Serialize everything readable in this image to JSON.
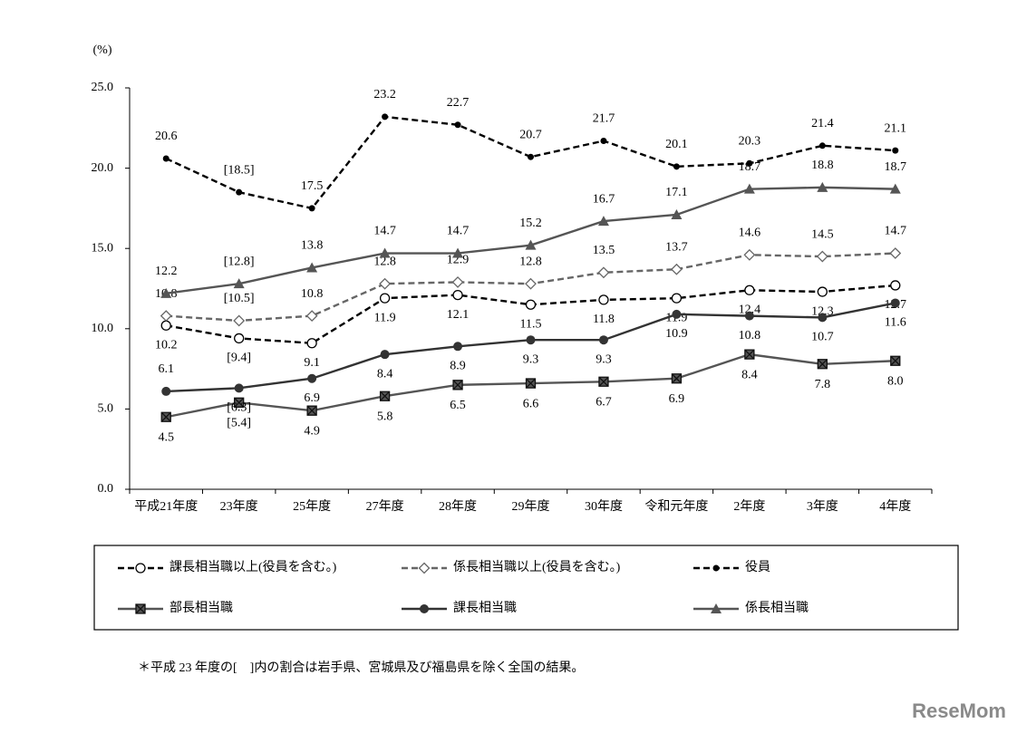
{
  "chart_data": {
    "type": "line",
    "unit_label": "(%)",
    "categories": [
      "平成21年度",
      "23年度",
      "25年度",
      "27年度",
      "28年度",
      "29年度",
      "30年度",
      "令和元年度",
      "2年度",
      "3年度",
      "4年度"
    ],
    "ylim": [
      0,
      25
    ],
    "yticks": [
      {
        "value": 0,
        "label": "0.0"
      },
      {
        "value": 5,
        "label": "5.0"
      },
      {
        "value": 10,
        "label": "10.0"
      },
      {
        "value": 15,
        "label": "15.0"
      },
      {
        "value": 20,
        "label": "20.0"
      },
      {
        "value": 25,
        "label": "25.0"
      }
    ],
    "series": [
      {
        "name": "課長相当職以上(役員を含む。)",
        "color": "#000000",
        "dashed": true,
        "marker": "open-circle",
        "values": [
          10.2,
          9.4,
          9.1,
          11.9,
          12.1,
          11.5,
          11.8,
          11.9,
          12.4,
          12.3,
          12.7
        ],
        "value_labels": [
          "10.2",
          "[9.4]",
          "9.1",
          "11.9",
          "12.1",
          "11.5",
          "11.8",
          "11.9",
          "12.4",
          "12.3",
          "12.7"
        ]
      },
      {
        "name": "係長相当職以上(役員を含む。)",
        "color": "#666666",
        "dashed": true,
        "marker": "open-diamond",
        "values": [
          10.8,
          10.5,
          10.8,
          12.8,
          12.9,
          12.8,
          13.5,
          13.7,
          14.6,
          14.5,
          14.7
        ],
        "value_labels": [
          "10.8",
          "[10.5]",
          "10.8",
          "12.8",
          "12.9",
          "12.8",
          "13.5",
          "13.7",
          "14.6",
          "14.5",
          "14.7"
        ]
      },
      {
        "name": "役員",
        "color": "#000000",
        "dashed": true,
        "marker": "dot",
        "values": [
          20.6,
          18.5,
          17.5,
          23.2,
          22.7,
          20.7,
          21.7,
          20.1,
          20.3,
          21.4,
          21.1
        ],
        "value_labels": [
          "20.6",
          "[18.5]",
          "17.5",
          "23.2",
          "22.7",
          "20.7",
          "21.7",
          "20.1",
          "20.3",
          "21.4",
          "21.1"
        ]
      },
      {
        "name": "部長相当職",
        "color": "#555555",
        "dashed": false,
        "marker": "x-square",
        "values": [
          4.5,
          5.4,
          4.9,
          5.8,
          6.5,
          6.6,
          6.7,
          6.9,
          8.4,
          7.8,
          8.0
        ],
        "value_labels": [
          "4.5",
          "[5.4]",
          "4.9",
          "5.8",
          "6.5",
          "6.6",
          "6.7",
          "6.9",
          "8.4",
          "7.8",
          "8.0"
        ]
      },
      {
        "name": "課長相当職",
        "color": "#333333",
        "dashed": false,
        "marker": "circle",
        "values": [
          6.1,
          6.3,
          6.9,
          8.4,
          8.9,
          9.3,
          9.3,
          10.9,
          10.8,
          10.7,
          11.6
        ],
        "value_labels": [
          "6.1",
          "[6.3]",
          "6.9",
          "8.4",
          "8.9",
          "9.3",
          "9.3",
          "10.9",
          "10.8",
          "10.7",
          "11.6"
        ]
      },
      {
        "name": "係長相当職",
        "color": "#555555",
        "dashed": false,
        "marker": "triangle",
        "values": [
          12.2,
          12.8,
          13.8,
          14.7,
          14.7,
          15.2,
          16.7,
          17.1,
          18.7,
          18.8,
          18.7
        ],
        "value_labels": [
          "12.2",
          "[12.8]",
          "13.8",
          "14.7",
          "14.7",
          "15.2",
          "16.7",
          "17.1",
          "18.7",
          "18.8",
          "18.7"
        ]
      }
    ],
    "note": "＊平成 23 年度の[　]内の割合は岩手県、宮城県及び福島県を除く全国の結果。",
    "watermark": "ReseMom"
  }
}
